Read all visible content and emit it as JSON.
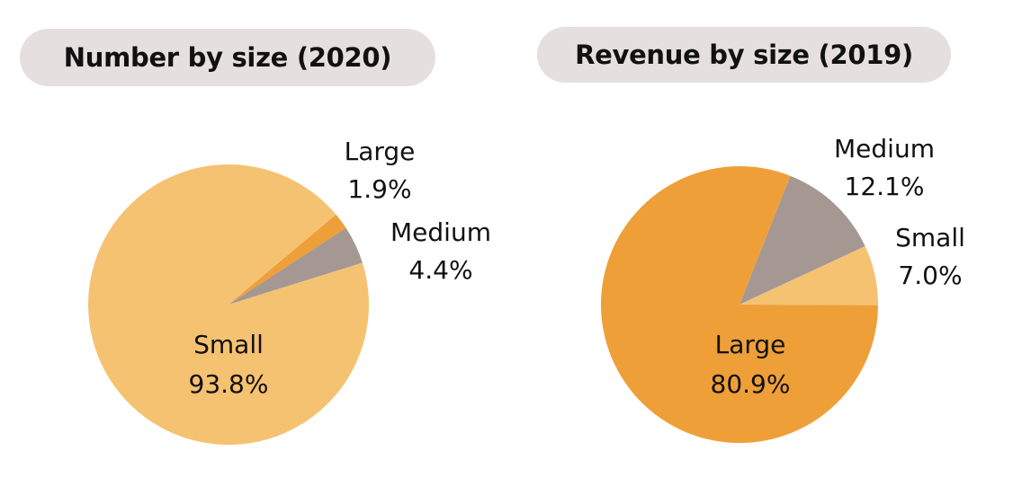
{
  "chart_data": [
    {
      "type": "pie",
      "title": "Number by size (2020)",
      "slices": [
        {
          "category": "Large",
          "value": 1.9,
          "value_label": "1.9%",
          "color": "#ef9f38"
        },
        {
          "category": "Medium",
          "value": 4.4,
          "value_label": "4.4%",
          "color": "#a59893"
        },
        {
          "category": "Small",
          "value": 93.8,
          "value_label": "93.8%",
          "color": "#f5c272"
        }
      ],
      "unit": "%"
    },
    {
      "type": "pie",
      "title": "Revenue by size (2019)",
      "slices": [
        {
          "category": "Medium",
          "value": 12.1,
          "value_label": "12.1%",
          "color": "#a59893"
        },
        {
          "category": "Small",
          "value": 7.0,
          "value_label": "7.0%",
          "color": "#f5c272"
        },
        {
          "category": "Large",
          "value": 80.9,
          "value_label": "80.9%",
          "color": "#ef9f38"
        }
      ],
      "unit": "%"
    }
  ]
}
